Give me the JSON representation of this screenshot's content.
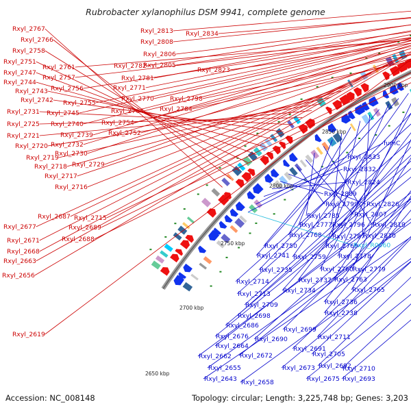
{
  "title": "Rubrobacter xylanophilus DSM 9941, complete genome",
  "footer": {
    "accession": "Accession: NC_008148",
    "summary": "Topology: circular; Length: 3,225,748 bp; Genes: 3,203"
  },
  "colors": {
    "forward": "#ee1111",
    "reverse": "#1133ee",
    "rna": "#22aadd",
    "backbone": "#999999"
  },
  "kbp_labels": [
    "2650 kbp",
    "2700 kbp",
    "2750 kbp",
    "2800 kbp",
    "2850 kbp",
    "2900 kbp"
  ],
  "forward_labels": [
    "Rxyl_2767",
    "Rxyl_2766",
    "Rxyl_2758",
    "Rxyl_2751",
    "Rxyl_2747",
    "Rxyl_2744",
    "Rxyl_2743",
    "Rxyl_2742",
    "Rxyl_2731",
    "Rxyl_2725",
    "Rxyl_2721",
    "Rxyl_2720",
    "Rxyl_2719",
    "Rxyl_2718",
    "Rxyl_2717",
    "Rxyl_2716",
    "Rxyl_2687",
    "Rxyl_2677",
    "Rxyl_2671",
    "Rxyl_2668",
    "Rxyl_2663",
    "Rxyl_2656",
    "Rxyl_2619",
    "Rxyl_2761",
    "Rxyl_2757",
    "Rxyl_2756",
    "Rxyl_2755",
    "Rxyl_2745",
    "Rxyl_2740",
    "Rxyl_2739",
    "Rxyl_2732",
    "Rxyl_2730",
    "Rxyl_2729",
    "Rxyl_2715",
    "Rxyl_2689",
    "Rxyl_2688",
    "Rxyl_2782",
    "Rxyl_2781",
    "Rxyl_2771",
    "Rxyl_2770",
    "Rxyl_2764",
    "Rxyl_2754",
    "Rxyl_2752",
    "Rxyl_2813",
    "Rxyl_2808",
    "Rxyl_2806",
    "Rxyl_2805",
    "Rxyl_2798",
    "Rxyl_2784",
    "Rxyl_2834",
    "Rxyl_2823"
  ],
  "reverse_labels": [
    "fumC",
    "Rxyl_2833",
    "Rxyl_2832",
    "Rxyl_2824",
    "Rxyl_2809",
    "Rxyl_2826",
    "Rxyl_2799",
    "Rxyl_2807",
    "Rxyl_2785",
    "Rxyl_2819",
    "Rxyl_2777",
    "Rxyl_2796",
    "Rxyl_2768",
    "Rxyl_2787",
    "Rxyl_2810",
    "Rxyl_2750",
    "Rxyl_2769",
    "Rxyl_2741",
    "Rxyl_2759",
    "Rxyl_2778",
    "Rxyl_2760",
    "Rxyl_2779",
    "Rxyl_2735",
    "Rxyl_2737",
    "Rxyl_2763",
    "Rxyl_2714",
    "Rxyl_2734",
    "Rxyl_2765",
    "Rxyl_2713",
    "Rxyl_2736",
    "Rxyl_2709",
    "Rxyl_2698",
    "Rxyl_2738",
    "Rxyl_2686",
    "Rxyl_2699",
    "Rxyl_2676",
    "Rxyl_2690",
    "Rxyl_2711",
    "Rxyl_2664",
    "Rxyl_2691",
    "Rxyl_2662",
    "Rxyl_2672",
    "Rxyl_2705",
    "Rxyl_2692",
    "Rxyl_2655",
    "Rxyl_2673",
    "Rxyl_2710",
    "Rxyl_2643",
    "Rxyl_2658",
    "Rxyl_2675",
    "Rxyl_2693"
  ],
  "rna_labels": [
    "Rxyl_R0060"
  ]
}
